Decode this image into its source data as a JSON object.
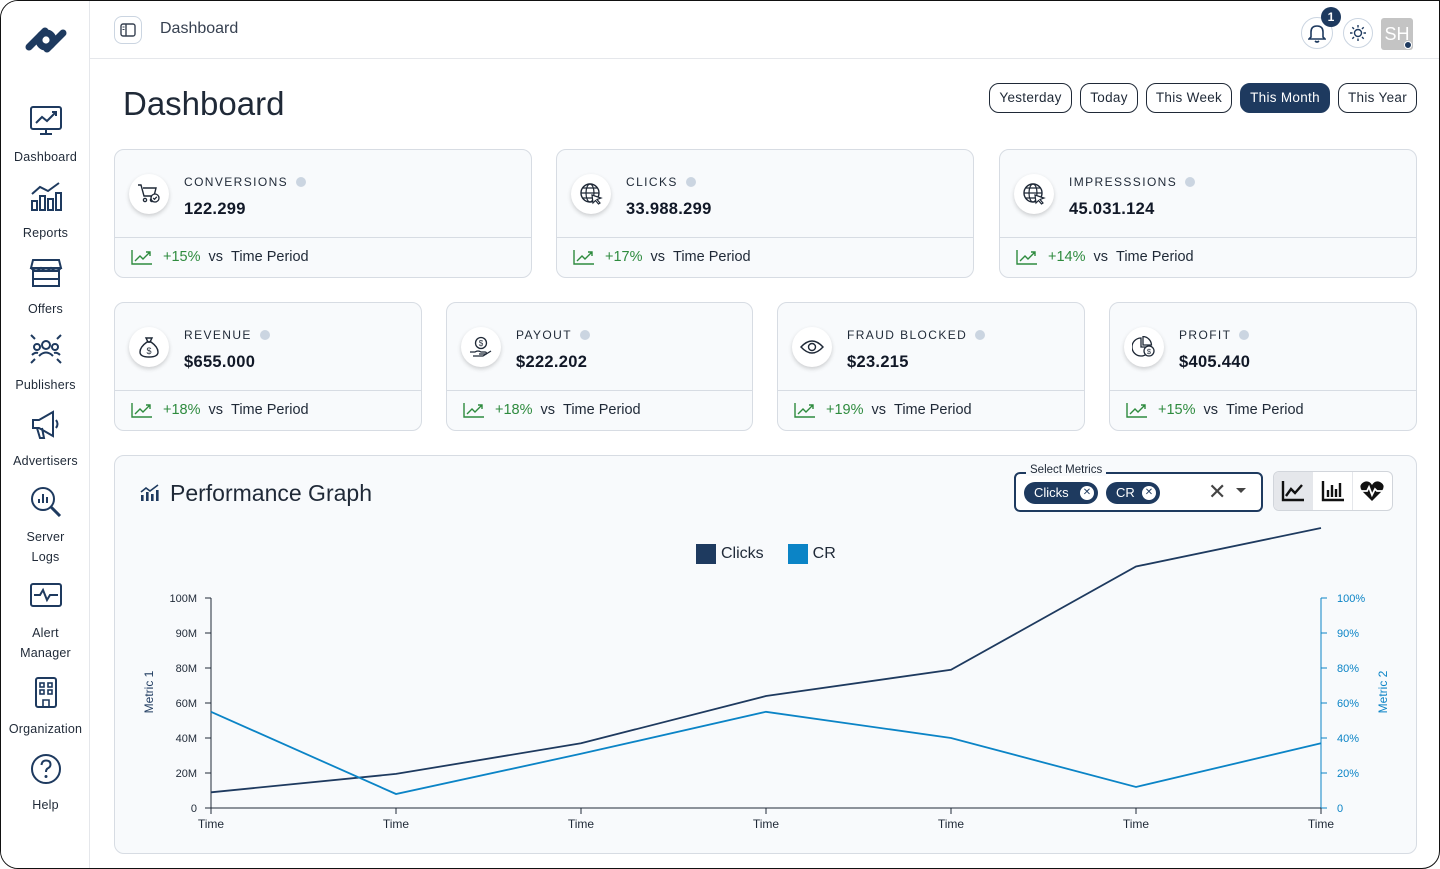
{
  "sidebar": {
    "items": [
      {
        "label": "Dashboard"
      },
      {
        "label": "Reports"
      },
      {
        "label": "Offers"
      },
      {
        "label": "Publishers"
      },
      {
        "label": "Advertisers"
      },
      {
        "label": "Server Logs",
        "line1": "Server",
        "line2": "Logs"
      },
      {
        "label": "Alert Manager",
        "line1": "Alert",
        "line2": "Manager"
      },
      {
        "label": "Organization"
      },
      {
        "label": "Help"
      }
    ]
  },
  "topbar": {
    "breadcrumb": "Dashboard",
    "notification_count": "1",
    "avatar_initials": "SH"
  },
  "header": {
    "title": "Dashboard",
    "periods": [
      "Yesterday",
      "Today",
      "This Week",
      "This Month",
      "This Year"
    ],
    "active_period": "This Month"
  },
  "cards": [
    {
      "label": "CONVERSIONS",
      "value": "122.299",
      "change": "+15%",
      "vs": "vs",
      "period": "Time Period",
      "icon": "cart-check-icon"
    },
    {
      "label": "CLICKS",
      "value": "33.988.299",
      "change": "+17%",
      "vs": "vs",
      "period": "Time Period",
      "icon": "globe-cursor-icon"
    },
    {
      "label": "IMPRESSSIONS",
      "value": "45.031.124",
      "change": "+14%",
      "vs": "vs",
      "period": "Time Period",
      "icon": "globe-cursor-icon"
    },
    {
      "label": "REVENUE",
      "value": "$655.000",
      "change": "+18%",
      "vs": "vs",
      "period": "Time Period",
      "icon": "money-bag-icon"
    },
    {
      "label": "PAYOUT",
      "value": "$222.202",
      "change": "+18%",
      "vs": "vs",
      "period": "Time Period",
      "icon": "hand-coin-icon"
    },
    {
      "label": "FRAUD BLOCKED",
      "value": "$23.215",
      "change": "+19%",
      "vs": "vs",
      "period": "Time Period",
      "icon": "eye-icon"
    },
    {
      "label": "PROFIT",
      "value": "$405.440",
      "change": "+15%",
      "vs": "vs",
      "period": "Time Period",
      "icon": "pie-coin-icon"
    }
  ],
  "performance": {
    "title": "Performance Graph",
    "select_label": "Select Metrics",
    "selected_metrics": [
      "Clicks",
      "CR"
    ],
    "chart_types": [
      "line-chart-icon",
      "bar-chart-icon",
      "heartbeat-icon"
    ]
  },
  "chart_data": {
    "type": "line",
    "x": [
      "Time",
      "Time",
      "Time",
      "Time",
      "Time",
      "Time",
      "Time"
    ],
    "series": [
      {
        "name": "Clicks",
        "axis": "left",
        "color": "#1e3a5f",
        "values": [
          9,
          19.5,
          37,
          64,
          79,
          109,
          120
        ]
      },
      {
        "name": "CR",
        "axis": "right",
        "color": "#0b84c6",
        "values": [
          55,
          8,
          31,
          55,
          40,
          12,
          37
        ]
      }
    ],
    "y_left": {
      "label": "Metric 1",
      "ticks": [
        "0",
        "20M",
        "40M",
        "60M",
        "80M",
        "90M",
        "100M"
      ]
    },
    "y_right": {
      "label": "Metric 2",
      "ticks": [
        "0",
        "20%",
        "40%",
        "60%",
        "80%",
        "90%",
        "100%"
      ]
    },
    "legend_position": "top-center",
    "grid": false
  }
}
